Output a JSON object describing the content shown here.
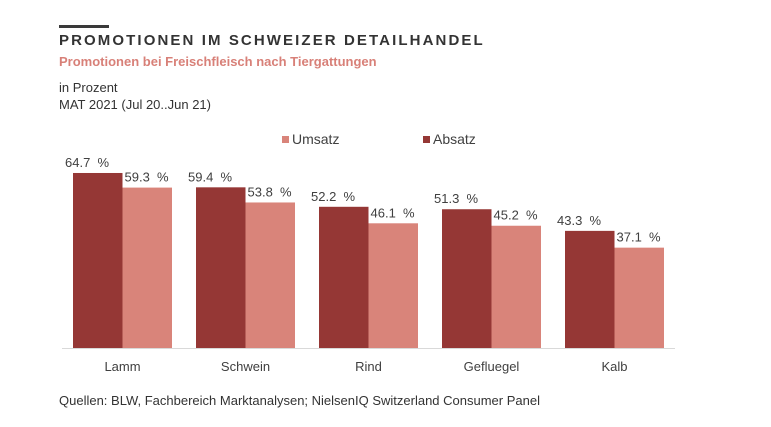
{
  "header": {
    "title": "PROMOTIONEN IM SCHWEIZER DETAILHANDEL",
    "subtitle": "Promotionen  bei  Freischfleisch  nach  Tiergattungen",
    "unit": "in Prozent",
    "period": "MAT 2021  (Jul 20..Jun  21)"
  },
  "footer": {
    "source": "Quellen: BLW, Fachbereich  Marktanalysen;  NielsenIQ Switzerland Consumer Panel"
  },
  "colors": {
    "absatz": "#953735",
    "umsatz": "#d9847a",
    "axis": "#d9d9d9"
  },
  "chart_data": {
    "type": "bar",
    "title": "PROMOTIONEN IM SCHWEIZER DETAILHANDEL",
    "subtitle": "Promotionen bei Freischfleisch nach Tiergattungen",
    "xlabel": "",
    "ylabel": "in Prozent",
    "ylim": [
      0,
      70
    ],
    "grid": false,
    "legend_position": "top-center",
    "value_suffix": " %",
    "categories": [
      "Lamm",
      "Schwein",
      "Rind",
      "Gefluegel",
      "Kalb"
    ],
    "series": [
      {
        "name": "Absatz",
        "values": [
          64.7,
          59.4,
          52.2,
          51.3,
          43.3
        ],
        "labels": [
          "64.7  %",
          "59.4  %",
          "52.2  %",
          "51.3  %",
          "43.3  %"
        ]
      },
      {
        "name": "Umsatz",
        "values": [
          59.3,
          53.8,
          46.1,
          45.2,
          37.1
        ],
        "labels": [
          "59.3  %",
          "53.8  %",
          "46.1  %",
          "45.2  %",
          "37.1  %"
        ]
      }
    ],
    "legend": [
      {
        "name": "Umsatz",
        "color": "#d9847a"
      },
      {
        "name": "Absatz",
        "color": "#953735"
      }
    ]
  }
}
